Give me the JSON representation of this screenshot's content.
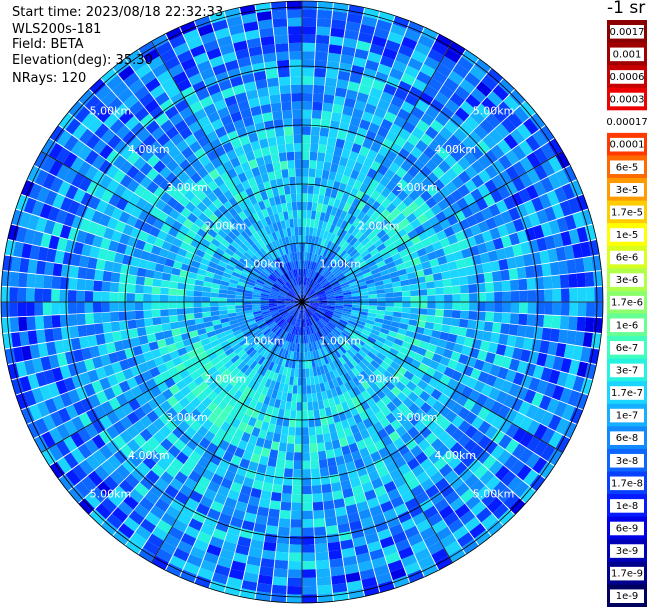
{
  "header": {
    "start_time": "Start time: 2023/08/18 22:32:33",
    "instrument": "WLS200s-181",
    "field": "Field: BETA",
    "elevation": "Elevation(deg): 35.30",
    "nrays": "NRays: 120"
  },
  "colorbar": {
    "unit_label": "-1 sr",
    "entries": [
      {
        "label": "0.0017",
        "color": "#8b0000"
      },
      {
        "label": "0.001",
        "color": "#a00000"
      },
      {
        "label": "0.0006",
        "color": "#c40000"
      },
      {
        "label": "0.0003",
        "color": "#ec0000"
      },
      {
        "label": "0.00017",
        "color": "#ffffff"
      },
      {
        "label": "0.0001",
        "color": "#ff3a00"
      },
      {
        "label": "6e-5",
        "color": "#ff6a00"
      },
      {
        "label": "3e-5",
        "color": "#ff9a00"
      },
      {
        "label": "1.7e-5",
        "color": "#ffcc00"
      },
      {
        "label": "1e-5",
        "color": "#ffff00"
      },
      {
        "label": "6e-6",
        "color": "#d8ff1e"
      },
      {
        "label": "3e-6",
        "color": "#b0ff48"
      },
      {
        "label": "1.7e-6",
        "color": "#8cff6c"
      },
      {
        "label": "1e-6",
        "color": "#66ff94"
      },
      {
        "label": "6e-7",
        "color": "#40ffbc"
      },
      {
        "label": "3e-7",
        "color": "#26f2e0"
      },
      {
        "label": "1.7e-7",
        "color": "#1ad6ff"
      },
      {
        "label": "1e-7",
        "color": "#14b0ff"
      },
      {
        "label": "6e-8",
        "color": "#108aff"
      },
      {
        "label": "3e-8",
        "color": "#0c66ff"
      },
      {
        "label": "1.7e-8",
        "color": "#0840ff"
      },
      {
        "label": "1e-8",
        "color": "#041aff"
      },
      {
        "label": "6e-9",
        "color": "#0000e6"
      },
      {
        "label": "3e-9",
        "color": "#0000b8"
      },
      {
        "label": "1.7e-9",
        "color": "#00008a"
      },
      {
        "label": "1e-9",
        "color": "#000060"
      }
    ]
  },
  "chart_data": {
    "type": "heatmap",
    "projection": "polar",
    "rays": 120,
    "range_unit": "km",
    "max_range_km": 5.0,
    "range_rings_km": [
      1.0,
      2.0,
      3.0,
      4.0,
      5.0
    ],
    "ring_labels": [
      "1.00km",
      "2.00km",
      "3.00km",
      "4.00km",
      "5.00km"
    ],
    "azimuth_grid_deg": [
      0,
      30,
      60,
      90,
      120,
      150,
      180,
      210,
      240,
      270,
      300,
      330
    ],
    "colorscale": "log",
    "value_range": [
      1e-09,
      0.0017
    ],
    "profile_by_range_km": [
      {
        "range_km": 0.5,
        "value": 1.7e-08
      },
      {
        "range_km": 1.0,
        "value": 1e-07
      },
      {
        "range_km": 2.0,
        "value": 1.7e-07
      },
      {
        "range_km": 3.0,
        "value": 1e-07
      },
      {
        "range_km": 4.0,
        "value": 6e-08
      },
      {
        "range_km": 5.0,
        "value": 3e-08
      }
    ],
    "highlight_region": {
      "azimuth_deg": 225,
      "range_km": [
        1.5,
        2.5
      ],
      "value": 6e-07
    }
  }
}
